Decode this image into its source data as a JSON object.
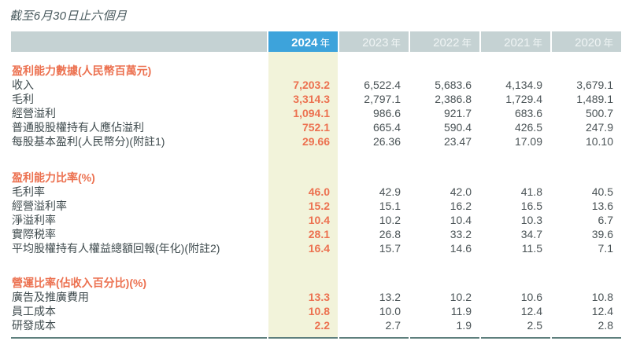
{
  "page": {
    "title": "截至6月30日止六個月"
  },
  "theme": {
    "accent-blue": "#3da3db",
    "header-gray": "#c5d2d3",
    "header-year-text": "#eff4f4",
    "highlight-yellow": "#f2f3da",
    "accent-orange": "#ec7150",
    "label-dark": "#3f4b4e",
    "number-gray": "#4a5356",
    "rule-teal": "#5e7f7d",
    "title-slate": "#47585c"
  },
  "table": {
    "header": {
      "columns": [
        {
          "year": "2024",
          "suffix": "年",
          "current": true
        },
        {
          "year": "2023",
          "suffix": "年"
        },
        {
          "year": "2022",
          "suffix": "年"
        },
        {
          "year": "2021",
          "suffix": "年"
        },
        {
          "year": "2020",
          "suffix": "年"
        }
      ]
    },
    "rows": [
      {
        "type": "section",
        "label": "盈利能力數據(人民幣百萬元)"
      },
      {
        "type": "data",
        "label": "收入",
        "values": [
          "7,203.2",
          "6,522.4",
          "5,683.6",
          "4,134.9",
          "3,679.1"
        ]
      },
      {
        "type": "data",
        "label": "毛利",
        "values": [
          "3,314.3",
          "2,797.1",
          "2,386.8",
          "1,729.4",
          "1,489.1"
        ]
      },
      {
        "type": "data",
        "label": "經營溢利",
        "values": [
          "1,094.1",
          "986.6",
          "921.7",
          "683.6",
          "500.7"
        ]
      },
      {
        "type": "data",
        "label": "普通股股權持有人應佔溢利",
        "values": [
          "752.1",
          "665.4",
          "590.4",
          "426.5",
          "247.9"
        ]
      },
      {
        "type": "data",
        "label": "每股基本盈利(人民幣分)(附註1)",
        "values": [
          "29.66",
          "26.36",
          "23.47",
          "17.09",
          "10.10"
        ]
      },
      {
        "type": "section",
        "label": "盈利能力比率(%)"
      },
      {
        "type": "data",
        "label": "毛利率",
        "values": [
          "46.0",
          "42.9",
          "42.0",
          "41.8",
          "40.5"
        ]
      },
      {
        "type": "data",
        "label": "經營溢利率",
        "values": [
          "15.2",
          "15.1",
          "16.2",
          "16.5",
          "13.6"
        ]
      },
      {
        "type": "data",
        "label": "淨溢利率",
        "values": [
          "10.4",
          "10.2",
          "10.4",
          "10.3",
          "6.7"
        ]
      },
      {
        "type": "data",
        "label": "實際税率",
        "values": [
          "28.1",
          "26.8",
          "33.2",
          "34.7",
          "39.6"
        ]
      },
      {
        "type": "data",
        "label": "平均股權持有人權益總額回報(年化)(附註2)",
        "values": [
          "16.4",
          "15.7",
          "14.6",
          "11.5",
          "7.1"
        ]
      },
      {
        "type": "section",
        "label": "營運比率(佔收入百分比)(%)"
      },
      {
        "type": "data",
        "label": "廣告及推廣費用",
        "values": [
          "13.3",
          "13.2",
          "10.2",
          "10.6",
          "10.8"
        ]
      },
      {
        "type": "data",
        "label": "員工成本",
        "values": [
          "10.8",
          "10.0",
          "11.9",
          "12.4",
          "12.4"
        ]
      },
      {
        "type": "data",
        "label": "研發成本",
        "values": [
          "2.2",
          "2.7",
          "1.9",
          "2.5",
          "2.8"
        ]
      }
    ]
  }
}
